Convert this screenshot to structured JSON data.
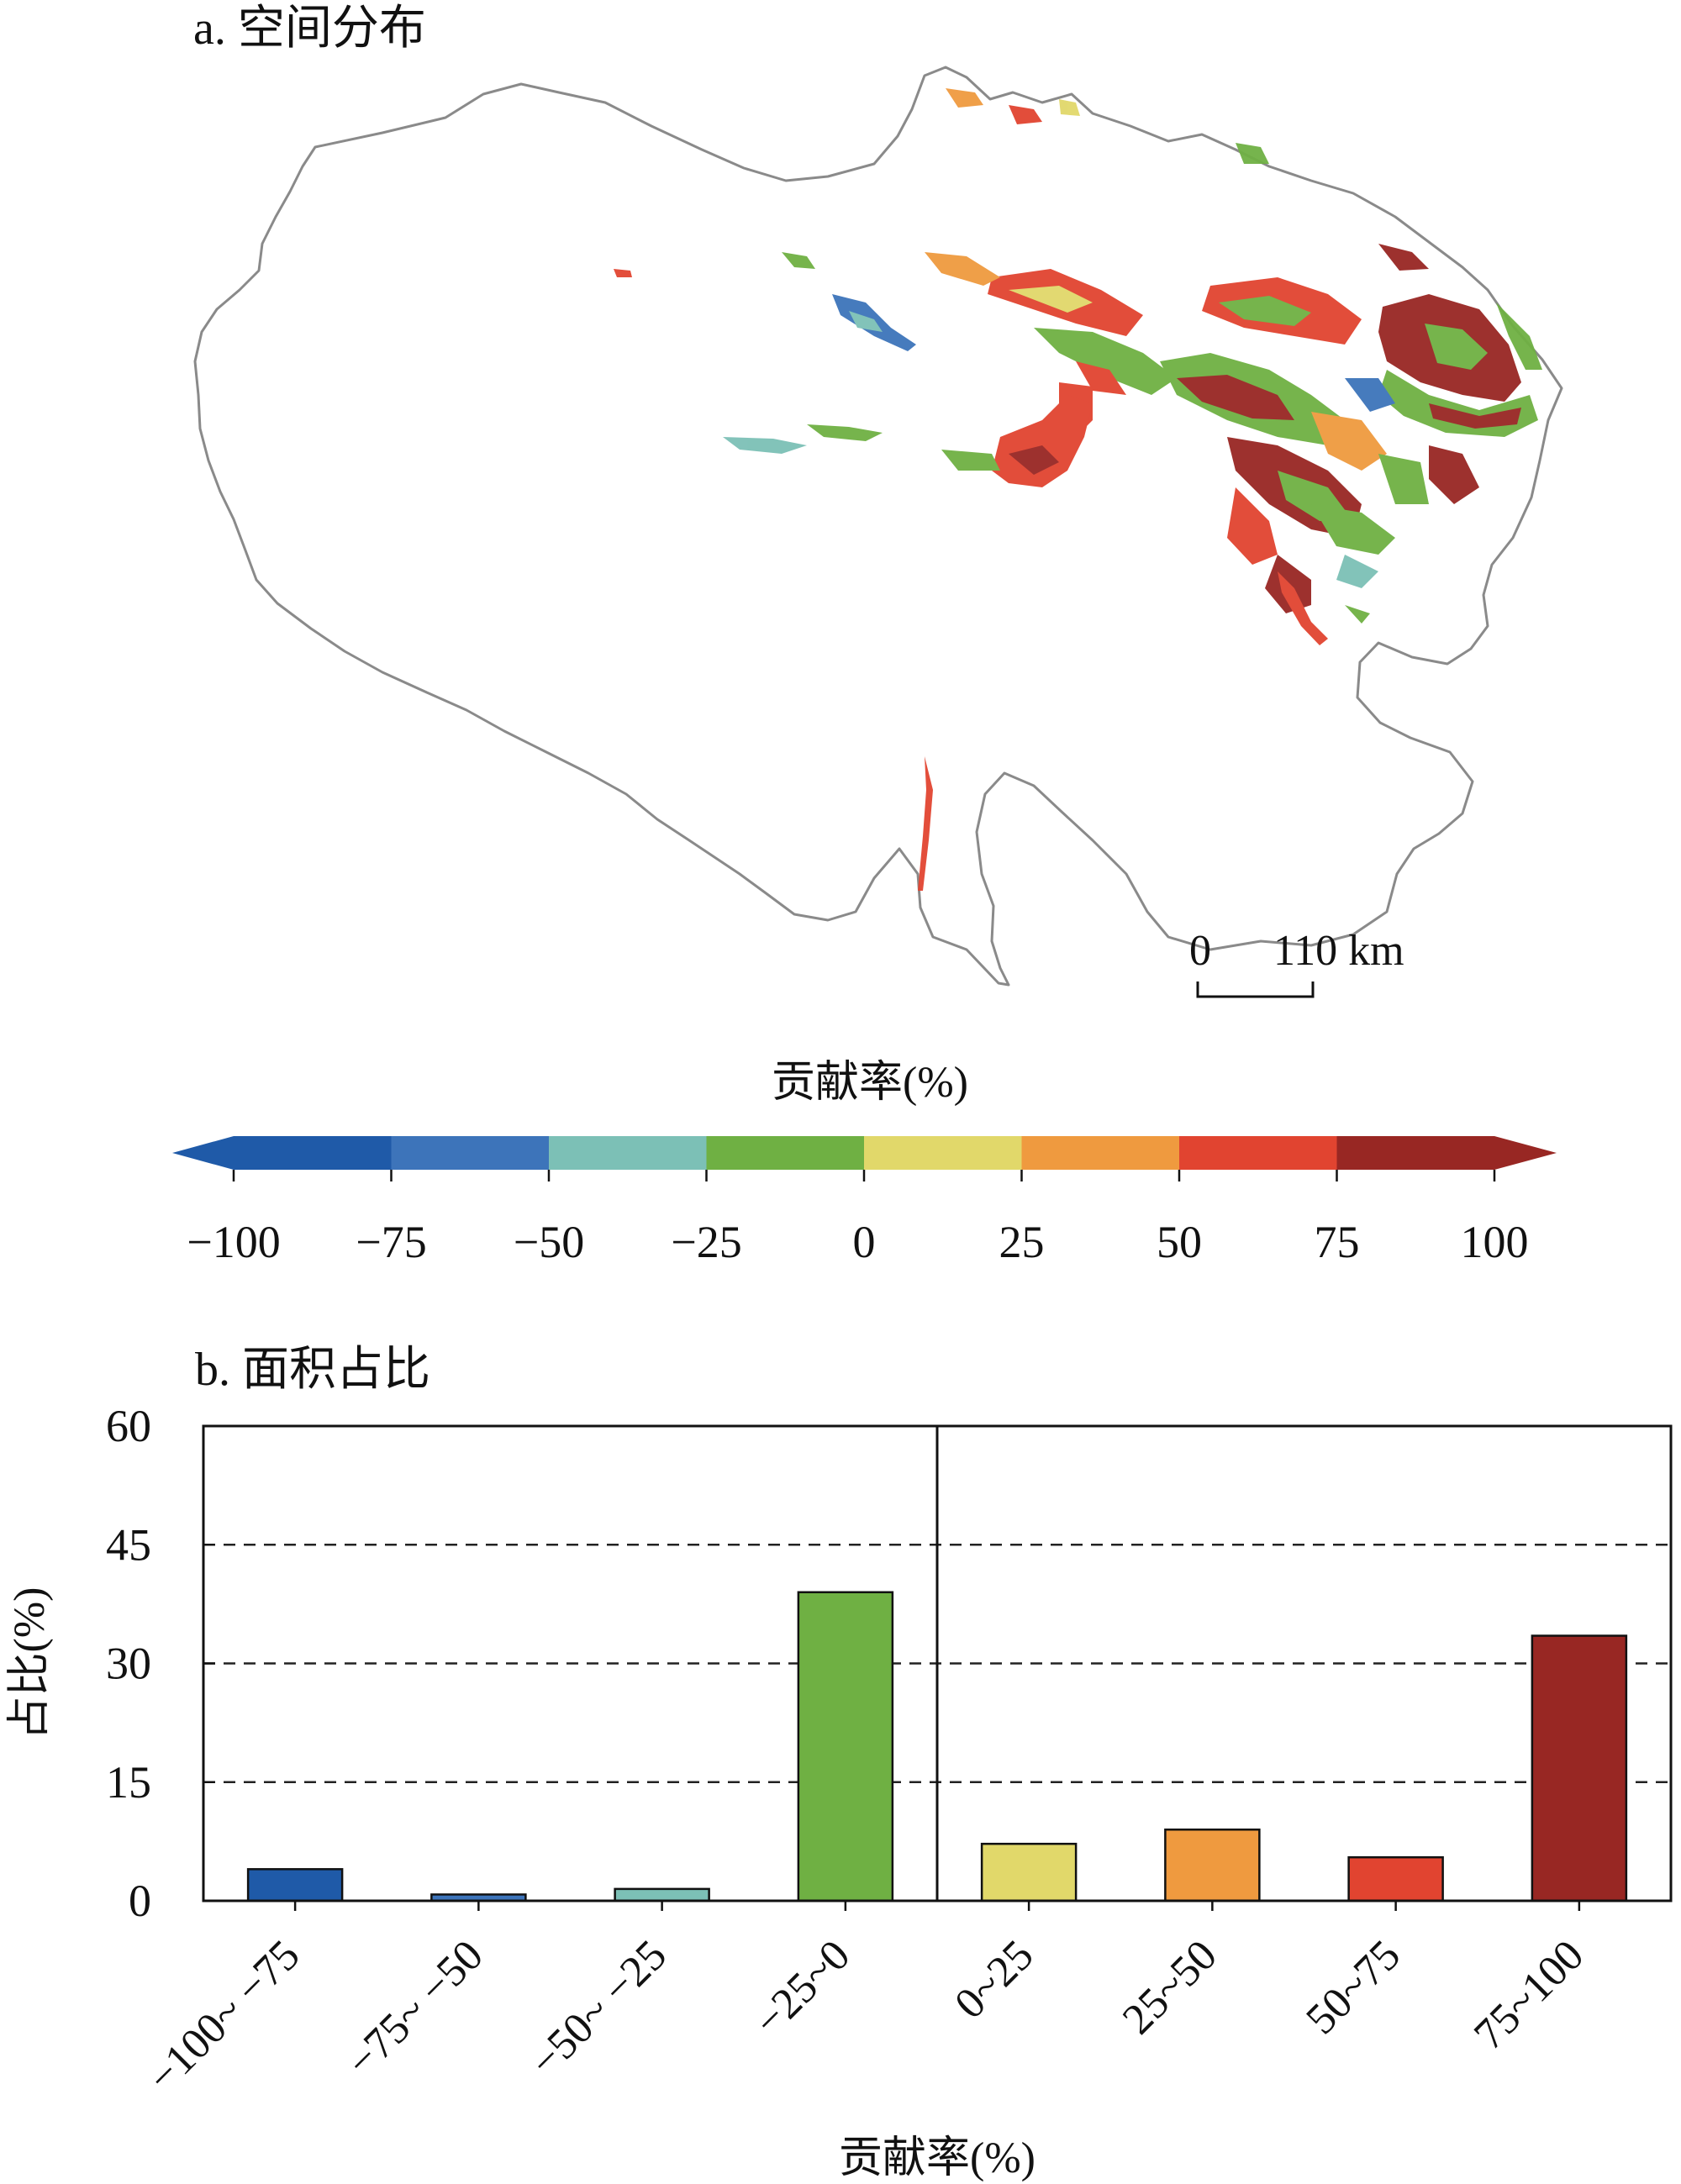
{
  "panel_a": {
    "title": "a. 空间分布",
    "scale_bar": {
      "label_start": "0",
      "label_end": "110 km"
    },
    "colorbar": {
      "title": "贡献率(%)",
      "ticks": [
        "−100",
        "−75",
        "−50",
        "−25",
        "0",
        "25",
        "50",
        "75",
        "100"
      ],
      "colors": [
        "#1f5aa8",
        "#3d74ba",
        "#7cc0b6",
        "#6fb043",
        "#e1d86a",
        "#ef9a3f",
        "#e14430",
        "#982723"
      ]
    }
  },
  "chart_data": {
    "type": "bar",
    "title": "b. 面积占比",
    "xlabel": "贡献率(%)",
    "ylabel": "占比(%)",
    "ylim": [
      0,
      60
    ],
    "yticks": [
      "0",
      "15",
      "30",
      "45",
      "60"
    ],
    "grid": "dashed horizontal at 15, 30, 45",
    "categories": [
      "−100~ −75",
      "−75~ −50",
      "−50~ −25",
      "−25~0",
      "0~25",
      "25~50",
      "50~75",
      "75~100"
    ],
    "values": [
      4.0,
      0.8,
      1.5,
      39.0,
      7.2,
      9.0,
      5.5,
      33.5
    ],
    "colors": [
      "#1f5aa8",
      "#3d74ba",
      "#7cc0b6",
      "#6fb043",
      "#e1d86a",
      "#ef9a3f",
      "#e14430",
      "#982723"
    ]
  }
}
